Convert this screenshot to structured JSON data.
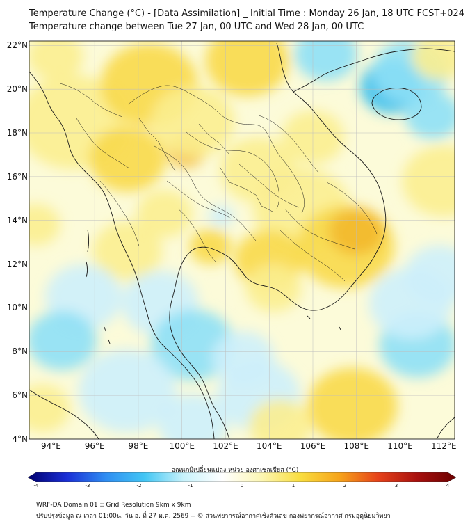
{
  "title": {
    "line1": "Temperature Change (°C) - [Data Assimilation] _ Initial Time : Monday 26 Jan, 18 UTC FCST+024",
    "line2": "Temperature change between Tue 27 Jan, 00 UTC and Wed 28 Jan, 00 UTC"
  },
  "map": {
    "lat_labels": [
      "22°N",
      "20°N",
      "18°N",
      "16°N",
      "14°N",
      "12°N",
      "10°N",
      "8°N",
      "6°N",
      "4°N"
    ],
    "lon_labels": [
      "94°E",
      "96°E",
      "98°E",
      "100°E",
      "102°E",
      "104°E",
      "106°E",
      "108°E",
      "110°E",
      "112°E"
    ],
    "extent": {
      "lon": [
        93,
        112.5
      ],
      "lat": [
        4,
        22.2
      ]
    },
    "field_colors": {
      "background": "#fcfbd9",
      "warm_light": "#fbee90",
      "warm": "#f8d94a",
      "warm_strong": "#f3b92c",
      "cool_light": "#cdf0fb",
      "cool": "#8ee0f6",
      "cool_strong": "#3cc0ee"
    },
    "coastline_color": "#1a1a1a"
  },
  "colorbar": {
    "title": "อุณหภูมิเปลี่ยนแปลง หน่วย องศาเซลเซียส (°C)",
    "ticks": [
      "-4",
      "-3",
      "-2",
      "-1",
      "0",
      "1",
      "2",
      "3",
      "4"
    ],
    "range": [
      -4,
      4
    ],
    "stops": [
      "#00006e",
      "#1a2fd6",
      "#2f8df2",
      "#43c6f4",
      "#c8f2fb",
      "#ffffff",
      "#fcf6b4",
      "#f9dd3f",
      "#f6a41b",
      "#e6421a",
      "#a8100e",
      "#6a0000"
    ]
  },
  "footer": {
    "line1": "WRF-DA Domain 01 :: Grid Resolution 9km x 9km",
    "line2": "ปรับปรุงข้อมูล ณ เวลา 01:00น. วัน อ. ที่ 27 ม.ค. 2569 -- © ส่วนพยากรณ์อากาศเชิงตัวเลข กองพยากรณ์อากาศ กรมอุตุนิยมวิทยา"
  }
}
